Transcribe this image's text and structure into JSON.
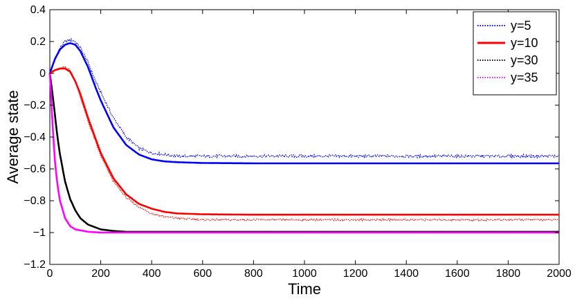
{
  "chart_data": {
    "type": "line",
    "title": "",
    "xlabel": "Time",
    "ylabel": "Average state",
    "xlim": [
      0,
      2000
    ],
    "ylim": [
      -1.2,
      0.4
    ],
    "xticks": [
      0,
      200,
      400,
      600,
      800,
      1000,
      1200,
      1400,
      1600,
      1800,
      2000
    ],
    "yticks": [
      0.4,
      0.2,
      0,
      -0.2,
      -0.4,
      -0.6,
      -0.8,
      -1,
      -1.2
    ],
    "ytick_labels": [
      "0.4",
      "0.2",
      "0",
      "−0.2",
      "−0.4",
      "−0.6",
      "−0.8",
      "−1",
      "−1.2"
    ],
    "grid": false,
    "legend_position": "top-right",
    "legend": [
      {
        "label": "y=5",
        "color": "#0000ff",
        "style": "dotted"
      },
      {
        "label": "y=10",
        "color": "#ff0000",
        "style": "solid"
      },
      {
        "label": "y=30",
        "color": "#000000",
        "style": "dotted"
      },
      {
        "label": "y=35",
        "color": "#ff00ff",
        "style": "dotted"
      }
    ],
    "series": [
      {
        "name": "y=5",
        "color": "#0000ff",
        "x": [
          0,
          20,
          40,
          60,
          80,
          100,
          120,
          150,
          180,
          200,
          250,
          300,
          350,
          400,
          450,
          500,
          600,
          800,
          1000,
          1200,
          1400,
          1600,
          1800,
          2000
        ],
        "simulation": [
          0,
          0.09,
          0.16,
          0.2,
          0.21,
          0.2,
          0.16,
          0.07,
          -0.05,
          -0.12,
          -0.28,
          -0.4,
          -0.47,
          -0.5,
          -0.51,
          -0.52,
          -0.52,
          -0.52,
          -0.52,
          -0.52,
          -0.52,
          -0.52,
          -0.52,
          -0.52
        ],
        "model": [
          0,
          0.09,
          0.15,
          0.18,
          0.19,
          0.18,
          0.14,
          0.04,
          -0.09,
          -0.17,
          -0.34,
          -0.45,
          -0.51,
          -0.54,
          -0.553,
          -0.558,
          -0.563,
          -0.565,
          -0.565,
          -0.565,
          -0.565,
          -0.565,
          -0.565,
          -0.565
        ]
      },
      {
        "name": "y=10",
        "color": "#ff0000",
        "x": [
          0,
          20,
          40,
          60,
          80,
          100,
          120,
          150,
          200,
          250,
          300,
          350,
          400,
          450,
          500,
          600,
          800,
          1000,
          1200,
          1400,
          1600,
          1800,
          2000
        ],
        "simulation": [
          0,
          0.02,
          0.03,
          0.04,
          0.02,
          -0.05,
          -0.15,
          -0.3,
          -0.52,
          -0.68,
          -0.78,
          -0.84,
          -0.88,
          -0.9,
          -0.91,
          -0.92,
          -0.92,
          -0.92,
          -0.92,
          -0.92,
          -0.92,
          -0.92,
          -0.92
        ],
        "model": [
          0,
          0.02,
          0.03,
          0.03,
          0.01,
          -0.05,
          -0.13,
          -0.28,
          -0.5,
          -0.66,
          -0.76,
          -0.82,
          -0.85,
          -0.87,
          -0.88,
          -0.885,
          -0.888,
          -0.888,
          -0.888,
          -0.888,
          -0.888,
          -0.888,
          -0.888
        ]
      },
      {
        "name": "y=30",
        "color": "#000000",
        "x": [
          0,
          10,
          20,
          30,
          40,
          60,
          80,
          100,
          120,
          150,
          200,
          250,
          300,
          400,
          500,
          600,
          1000,
          1500,
          2000
        ],
        "simulation": [
          0,
          -0.12,
          -0.26,
          -0.4,
          -0.51,
          -0.68,
          -0.79,
          -0.86,
          -0.91,
          -0.95,
          -0.98,
          -0.99,
          -0.995,
          -0.995,
          -0.995,
          -0.995,
          -0.995,
          -0.995,
          -0.995
        ],
        "model": [
          0,
          -0.12,
          -0.26,
          -0.4,
          -0.51,
          -0.68,
          -0.79,
          -0.86,
          -0.91,
          -0.95,
          -0.98,
          -0.99,
          -0.995,
          -0.995,
          -0.995,
          -0.995,
          -0.995,
          -0.995,
          -0.995
        ]
      },
      {
        "name": "y=35",
        "color": "#ff00ff",
        "x": [
          0,
          10,
          20,
          30,
          40,
          60,
          80,
          100,
          150,
          200,
          300,
          500,
          1000,
          1500,
          2000
        ],
        "simulation": [
          0,
          -0.3,
          -0.55,
          -0.7,
          -0.8,
          -0.91,
          -0.96,
          -0.98,
          -0.995,
          -1.0,
          -1.0,
          -1.0,
          -1.0,
          -1.0,
          -1.0
        ],
        "model": [
          0,
          -0.3,
          -0.55,
          -0.7,
          -0.8,
          -0.91,
          -0.96,
          -0.98,
          -0.995,
          -1.0,
          -1.0,
          -1.0,
          -1.0,
          -1.0,
          -1.0
        ]
      }
    ]
  }
}
